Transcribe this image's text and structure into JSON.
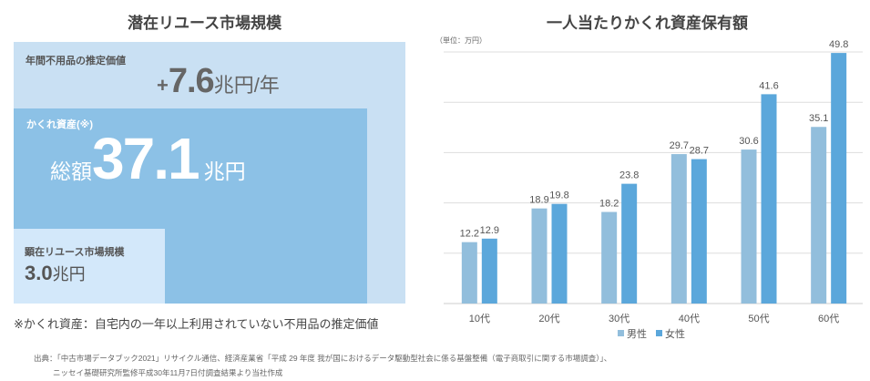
{
  "left": {
    "title": "潜在リユース市場規模",
    "annual": {
      "label": "年間不用品の推定価値",
      "prefix": "+",
      "value": "7.6",
      "unit": "兆円/年"
    },
    "hidden": {
      "label": "かくれ資産(※)",
      "prefix": "総額",
      "value": "37.1",
      "unit": "兆円"
    },
    "visible": {
      "label": "顕在リユース市場規模",
      "value": "3.0",
      "unit": "兆円"
    },
    "footnote": "※かくれ資産：自宅内の一年以上利用されていない不用品の推定価値"
  },
  "source": {
    "line1": "出典：「中古市場データブック2021」リサイクル通信、経済産業省「平成 29 年度 我が国におけるデータ駆動型社会に係る基盤整備（電子商取引に関する市場調査）」、",
    "line2": "ニッセイ基礎研究所監修平成30年11月7日付調査結果より当社作成"
  },
  "chart_data": {
    "type": "bar",
    "title": "一人当たりかくれ資産保有額",
    "unit_label": "（単位：万円）",
    "categories": [
      "10代",
      "20代",
      "30代",
      "40代",
      "50代",
      "60代"
    ],
    "series": [
      {
        "name": "男性",
        "color": "#92bedc",
        "values": [
          12.2,
          18.9,
          18.2,
          29.7,
          30.6,
          35.1
        ]
      },
      {
        "name": "女性",
        "color": "#5ba7db",
        "values": [
          12.9,
          19.8,
          23.8,
          28.7,
          41.6,
          49.8
        ]
      }
    ],
    "ylim": [
      0,
      50
    ],
    "grid": true,
    "legend": "bottom"
  }
}
